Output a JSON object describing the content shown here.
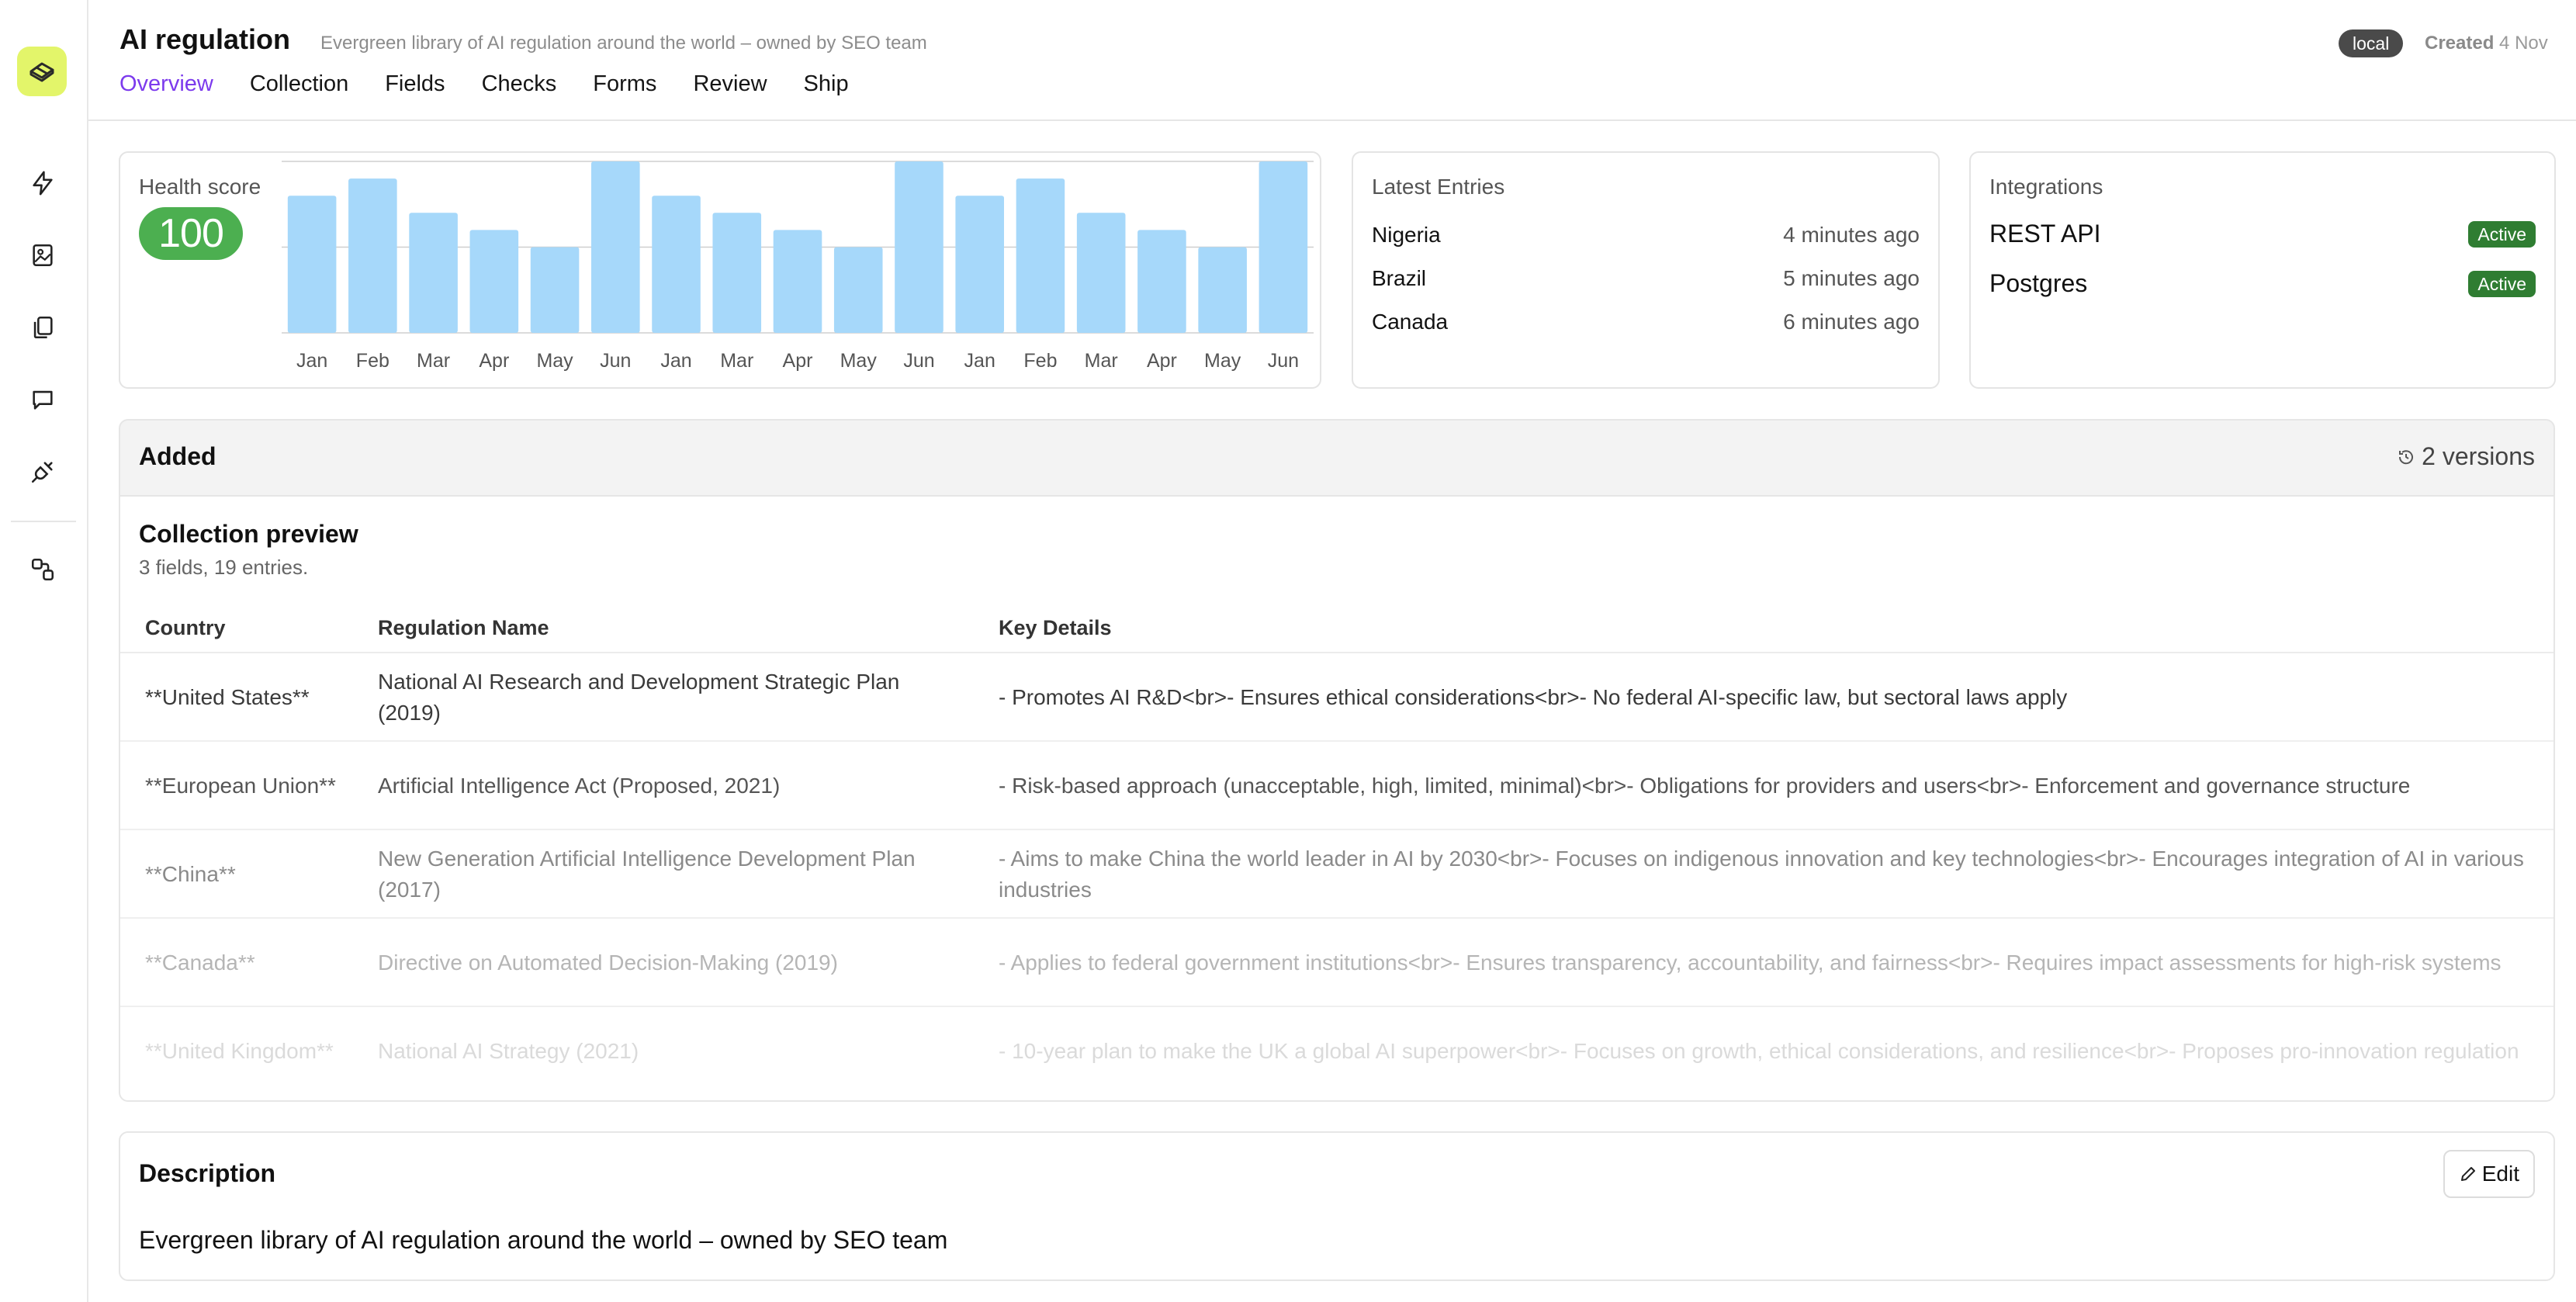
{
  "sidebar": {
    "icons": [
      "logo-icon",
      "bolt-icon",
      "image-icon",
      "copy-icon",
      "chat-icon",
      "plug-icon",
      "workflow-icon"
    ]
  },
  "header": {
    "title": "AI regulation",
    "subtitle": "Evergreen library of AI regulation around the world – owned by SEO team",
    "env_badge": "local",
    "created_label": "Created",
    "created_date": "4 Nov",
    "tabs": [
      {
        "label": "Overview",
        "active": true
      },
      {
        "label": "Collection"
      },
      {
        "label": "Fields"
      },
      {
        "label": "Checks"
      },
      {
        "label": "Forms"
      },
      {
        "label": "Review"
      },
      {
        "label": "Ship"
      }
    ]
  },
  "health": {
    "label": "Health score",
    "score": "100",
    "accent": "#4caf50"
  },
  "chart_data": {
    "type": "bar",
    "categories": [
      "Jan",
      "Feb",
      "Mar",
      "Apr",
      "May",
      "Jun",
      "Jan",
      "Mar",
      "Apr",
      "May",
      "Jun",
      "Jan",
      "Feb",
      "Mar",
      "Apr",
      "May",
      "Jun"
    ],
    "values": [
      80,
      90,
      70,
      60,
      50,
      100,
      80,
      70,
      60,
      50,
      100,
      80,
      90,
      70,
      60,
      50,
      100
    ],
    "ylim": [
      0,
      100
    ],
    "grid": true,
    "bar_color": "#a6d8fa"
  },
  "latest": {
    "label": "Latest Entries",
    "entries": [
      {
        "name": "Nigeria",
        "time": "4 minutes ago"
      },
      {
        "name": "Brazil",
        "time": "5 minutes ago"
      },
      {
        "name": "Canada",
        "time": "6 minutes ago"
      }
    ]
  },
  "integrations": {
    "label": "Integrations",
    "items": [
      {
        "name": "REST API",
        "status": "Active"
      },
      {
        "name": "Postgres",
        "status": "Active"
      }
    ],
    "status_color": "#2f7d32"
  },
  "added": {
    "title": "Added",
    "versions": "2 versions"
  },
  "preview": {
    "title": "Collection preview",
    "subtitle": "3 fields, 19 entries.",
    "columns": [
      "Country",
      "Regulation Name",
      "Key Details"
    ],
    "rows": [
      {
        "country": "**United States**",
        "regulation": "National AI Research and Development Strategic Plan (2019)",
        "details": "- Promotes AI R&D<br>- Ensures ethical considerations<br>- No federal AI-specific law, but sectoral laws apply"
      },
      {
        "country": "**European Union**",
        "regulation": "Artificial Intelligence Act (Proposed, 2021)",
        "details": "- Risk-based approach (unacceptable, high, limited, minimal)<br>- Obligations for providers and users<br>- Enforcement and governance structure"
      },
      {
        "country": "**China**",
        "regulation": "New Generation Artificial Intelligence Development Plan (2017)",
        "details": "- Aims to make China the world leader in AI by 2030<br>- Focuses on indigenous innovation and key technologies<br>- Encourages integration of AI in various industries"
      },
      {
        "country": "**Canada**",
        "regulation": "Directive on Automated Decision-Making (2019)",
        "details": "- Applies to federal government institutions<br>- Ensures transparency, accountability, and fairness<br>- Requires impact assessments for high-risk systems"
      },
      {
        "country": "**United Kingdom**",
        "regulation": "National AI Strategy (2021)",
        "details": "- 10-year plan to make the UK a global AI superpower<br>- Focuses on growth, ethical considerations, and resilience<br>- Proposes pro-innovation regulation"
      }
    ]
  },
  "description": {
    "title": "Description",
    "edit_label": "Edit",
    "text": "Evergreen library of AI regulation around the world – owned by SEO team"
  }
}
